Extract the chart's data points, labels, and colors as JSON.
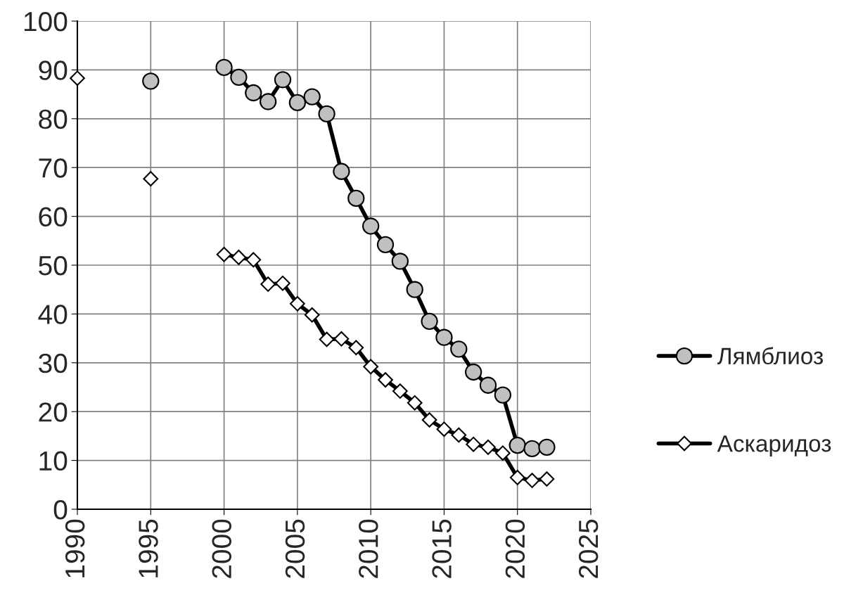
{
  "chart_data": {
    "type": "line",
    "xlim": [
      1990,
      2025
    ],
    "ylim": [
      0,
      100
    ],
    "xticks": [
      1990,
      1995,
      2000,
      2005,
      2010,
      2015,
      2020,
      2025
    ],
    "yticks": [
      0,
      10,
      20,
      30,
      40,
      50,
      60,
      70,
      80,
      90,
      100
    ],
    "grid": true,
    "legend": "right",
    "line_style": "solid",
    "series": [
      {
        "name": "Лямблиоз",
        "color": "#c0c0c0",
        "marker": "circle",
        "x": [
          2000,
          2001,
          2002,
          2003,
          2004,
          2005,
          2006,
          2007,
          2008,
          2009,
          2010,
          2011,
          2012,
          2013,
          2014,
          2015,
          2016,
          2017,
          2018,
          2019,
          2020,
          2021,
          2022
        ],
        "values": [
          90.5,
          88.5,
          85.3,
          83.5,
          88,
          83.3,
          84.5,
          81,
          69.2,
          63.7,
          58,
          54.2,
          50.8,
          45,
          38.5,
          35.2,
          32.8,
          28.1,
          25.4,
          23.4,
          13.1,
          12.4,
          12.7
        ]
      },
      {
        "type": "scatter",
        "color": "#c0c0c0",
        "marker": "circle",
        "x": [
          1995
        ],
        "values": [
          87.7
        ]
      },
      {
        "name": "Аскаридоз",
        "color": "#ffffff",
        "marker": "diamond",
        "x": [
          2000,
          2001,
          2002,
          2003,
          2004,
          2005,
          2006,
          2007,
          2008,
          2009,
          2010,
          2011,
          2012,
          2013,
          2014,
          2015,
          2016,
          2017,
          2018,
          2019,
          2020,
          2021,
          2022
        ],
        "values": [
          52.2,
          51.6,
          51.1,
          46.1,
          46.3,
          42.1,
          39.8,
          34.8,
          34.9,
          33.1,
          29.2,
          26.5,
          24.2,
          21.8,
          18.3,
          16.4,
          15.2,
          13.3,
          12.7,
          11.5,
          6.5,
          5.9,
          6.2
        ]
      },
      {
        "type": "scatter",
        "color": "#ffffff",
        "marker": "diamond",
        "x": [
          1990,
          1995
        ],
        "values": [
          88.3,
          67.7
        ]
      }
    ]
  }
}
